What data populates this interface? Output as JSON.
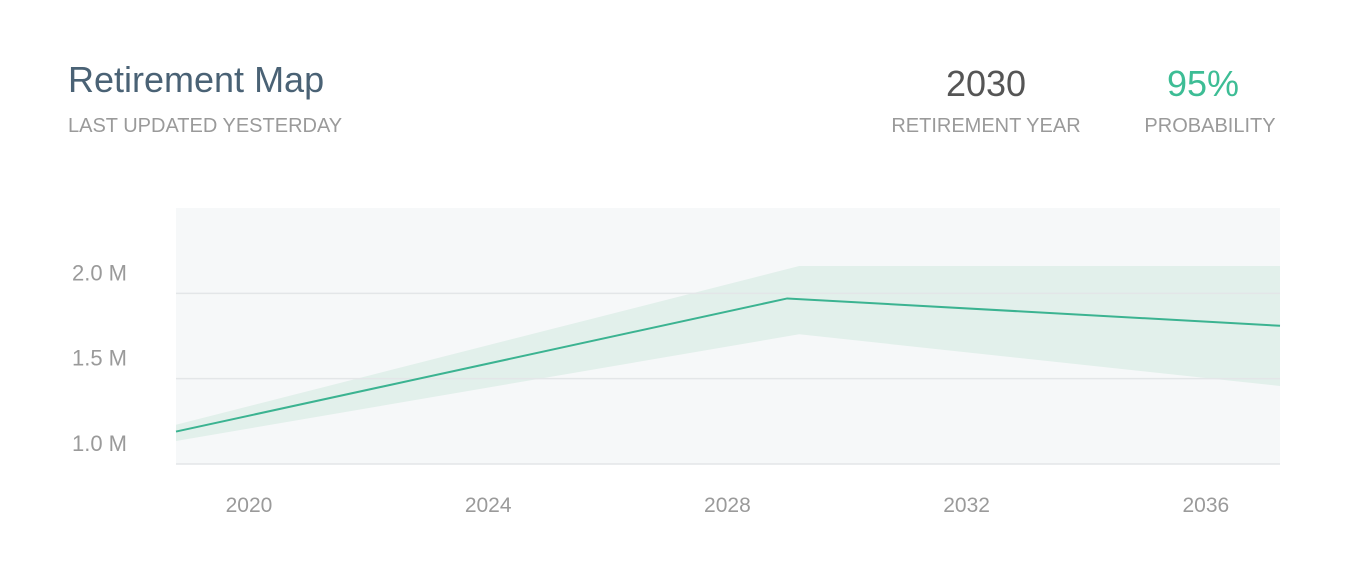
{
  "header": {
    "title": "Retirement Map",
    "subtitle": "LAST UPDATED YESTERDAY",
    "stats": [
      {
        "value": "2030",
        "label": "RETIREMENT YEAR"
      },
      {
        "value": "95%",
        "label": "PROBABILITY"
      }
    ]
  },
  "chart_data": {
    "type": "line",
    "x": [
      2018.78,
      2029,
      2037.24
    ],
    "series": [
      {
        "color": "#3bb391",
        "values": [
          1190000,
          1970000,
          1810000
        ]
      }
    ],
    "band": {
      "color": "#e2f0eb",
      "x": [
        2018.78,
        2029.2,
        2037.24
      ],
      "upper": [
        1230000,
        2160000,
        2160000
      ],
      "lower": [
        1135000,
        1760000,
        1457000
      ]
    },
    "xlim": [
      2018.78,
      2037.24
    ],
    "xticks": [
      2020,
      2024,
      2028,
      2032,
      2036
    ],
    "ylim": [
      1000000,
      2500000
    ],
    "yticks": [
      {
        "value": 1000000,
        "label": "1.0 M"
      },
      {
        "value": 1500000,
        "label": "1.5 M"
      },
      {
        "value": 2000000,
        "label": "2.0 M"
      }
    ],
    "grid": true
  }
}
